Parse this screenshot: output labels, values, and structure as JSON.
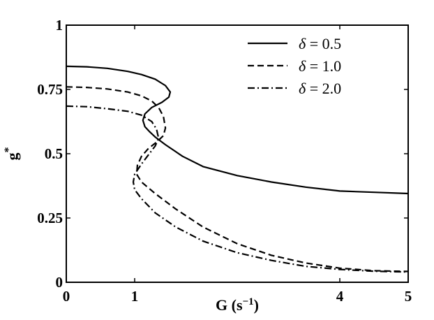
{
  "chart_data": {
    "type": "line",
    "title": "",
    "xlabel": "G (s",
    "xlabel_sup": "−1",
    "xlabel_close": ")",
    "ylabel": "g",
    "ylabel_sup": "*",
    "xlim": [
      0,
      5
    ],
    "ylim": [
      0,
      1
    ],
    "xticks": [
      0,
      1,
      4,
      5
    ],
    "xtick_labels": [
      "0",
      "1",
      "4",
      "5"
    ],
    "yticks": [
      0,
      0.25,
      0.5,
      0.75,
      1
    ],
    "ytick_labels": [
      "0",
      "0.25",
      "0.5",
      "0.75",
      "1"
    ],
    "grid": false,
    "legend_position": "top-right",
    "series": [
      {
        "name_symbol": "δ",
        "name_value": " = 0.5",
        "style": "solid",
        "x": [
          0,
          0.3,
          0.6,
          0.9,
          1.1,
          1.3,
          1.45,
          1.52,
          1.5,
          1.4,
          1.25,
          1.15,
          1.12,
          1.15,
          1.22,
          1.3,
          1.45,
          1.7,
          2.0,
          2.5,
          3.0,
          3.5,
          4.0,
          4.5,
          5.0
        ],
        "y": [
          0.84,
          0.838,
          0.832,
          0.82,
          0.808,
          0.79,
          0.765,
          0.74,
          0.72,
          0.7,
          0.68,
          0.655,
          0.63,
          0.605,
          0.585,
          0.565,
          0.535,
          0.49,
          0.45,
          0.415,
          0.39,
          0.37,
          0.355,
          0.35,
          0.345
        ]
      },
      {
        "name_symbol": "δ",
        "name_value": " = 1.0",
        "style": "dashed",
        "x": [
          0,
          0.3,
          0.6,
          0.9,
          1.1,
          1.25,
          1.35,
          1.42,
          1.45,
          1.42,
          1.32,
          1.2,
          1.1,
          1.04,
          1.03,
          1.1,
          1.3,
          1.6,
          2.0,
          2.5,
          3.0,
          3.5,
          4.0,
          4.5,
          5.0
        ],
        "y": [
          0.76,
          0.758,
          0.752,
          0.74,
          0.725,
          0.705,
          0.68,
          0.645,
          0.6,
          0.57,
          0.545,
          0.52,
          0.49,
          0.455,
          0.42,
          0.39,
          0.345,
          0.285,
          0.215,
          0.15,
          0.105,
          0.075,
          0.055,
          0.045,
          0.042
        ]
      },
      {
        "name_symbol": "δ",
        "name_value": " = 2.0",
        "style": "dashdot",
        "x": [
          0,
          0.3,
          0.6,
          0.9,
          1.1,
          1.25,
          1.32,
          1.35,
          1.3,
          1.2,
          1.1,
          1.0,
          0.98,
          1.0,
          1.1,
          1.3,
          1.6,
          2.0,
          2.5,
          3.0,
          3.5,
          4.0,
          4.5,
          5.0
        ],
        "y": [
          0.685,
          0.683,
          0.675,
          0.665,
          0.65,
          0.625,
          0.595,
          0.56,
          0.53,
          0.495,
          0.46,
          0.42,
          0.39,
          0.36,
          0.325,
          0.27,
          0.215,
          0.16,
          0.115,
          0.085,
          0.062,
          0.05,
          0.043,
          0.04
        ]
      }
    ]
  }
}
